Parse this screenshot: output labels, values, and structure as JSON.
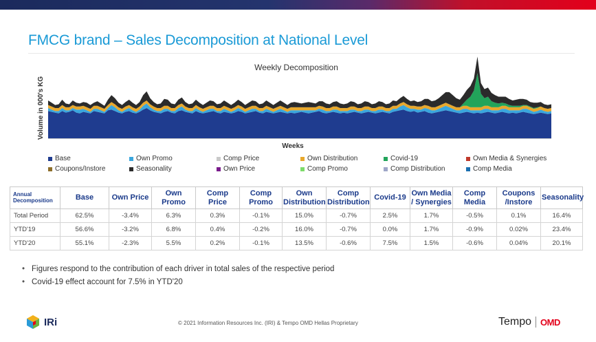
{
  "slide": {
    "title": "FMCG brand – Sales Decomposition at National Level"
  },
  "chart_data": {
    "type": "area",
    "title": "Weekly Decomposition",
    "xlabel": "Weeks",
    "ylabel": "Volume in 000's KG",
    "stacked": true,
    "weeks": 144,
    "series": [
      {
        "name": "Base",
        "color": "#1f3c8f"
      },
      {
        "name": "Own Promo",
        "color": "#3aa6dd"
      },
      {
        "name": "Comp Price",
        "color": "#c9c9c9"
      },
      {
        "name": "Own Distribution",
        "color": "#e8a82c"
      },
      {
        "name": "Covid-19",
        "color": "#22a45a"
      },
      {
        "name": "Own Media & Synergies",
        "color": "#c0392b"
      },
      {
        "name": "Coupons/Instore",
        "color": "#8d6e2a"
      },
      {
        "name": "Seasonality",
        "color": "#2b2b2b"
      },
      {
        "name": "Own Price",
        "color": "#7a1c8c"
      },
      {
        "name": "Comp Promo",
        "color": "#7ddc6a"
      },
      {
        "name": "Comp Distribution",
        "color": "#9fa6c8"
      },
      {
        "name": "Comp Media",
        "color": "#1a6fb0"
      }
    ],
    "profile": {
      "base": [
        36,
        35,
        34,
        33,
        36,
        34,
        35,
        37,
        34,
        33,
        35,
        34,
        33,
        36,
        35,
        34,
        33,
        37,
        38,
        36,
        34,
        33,
        35,
        36,
        34,
        33,
        35,
        38,
        40,
        37,
        35,
        34,
        33,
        35,
        36,
        34,
        33,
        36,
        37,
        35,
        34,
        33,
        36,
        34,
        33,
        34,
        35,
        36,
        34,
        33,
        35,
        34,
        33,
        34,
        36,
        35,
        33,
        34,
        35,
        36,
        34,
        33,
        35,
        34,
        33,
        34,
        35,
        34,
        33,
        34,
        33,
        34,
        35,
        34,
        33,
        34,
        35,
        36,
        34,
        33,
        34,
        35,
        34,
        33,
        34,
        33,
        34,
        35,
        34,
        33,
        34,
        35,
        34,
        33,
        34,
        35,
        34,
        33,
        35,
        36,
        37,
        38,
        36,
        35,
        36,
        34,
        35,
        36,
        34,
        33,
        34,
        35,
        36,
        37,
        36,
        35,
        34,
        33,
        34,
        35,
        34,
        33,
        34,
        33,
        34,
        35,
        34,
        33,
        34,
        35,
        34,
        33,
        34,
        33,
        34,
        35,
        34,
        33,
        32,
        33,
        34,
        33,
        32,
        33
      ],
      "own_promo": [
        4,
        3,
        2,
        3,
        4,
        3,
        2,
        3,
        4,
        5,
        4,
        3,
        2,
        3,
        4,
        3,
        2,
        3,
        6,
        5,
        3,
        2,
        3,
        4,
        3,
        2,
        3,
        5,
        6,
        4,
        3,
        2,
        3,
        4,
        3,
        2,
        3,
        4,
        5,
        3,
        2,
        3,
        4,
        3,
        2,
        3,
        4,
        3,
        2,
        3,
        4,
        3,
        2,
        3,
        4,
        3,
        2,
        3,
        4,
        3,
        2,
        3,
        4,
        3,
        2,
        3,
        4,
        3,
        2,
        3,
        4,
        3,
        2,
        3,
        4,
        3,
        2,
        3,
        4,
        3,
        2,
        3,
        4,
        3,
        2,
        3,
        4,
        3,
        2,
        3,
        4,
        3,
        2,
        3,
        4,
        3,
        2,
        3,
        4,
        3,
        5,
        6,
        5,
        4,
        3,
        4,
        3,
        4,
        5,
        4,
        3,
        4,
        5,
        6,
        5,
        4,
        3,
        4,
        5,
        4,
        3,
        4,
        3,
        4,
        5,
        4,
        3,
        4,
        3,
        4,
        5,
        4,
        3,
        4,
        3,
        4,
        5,
        4,
        3,
        3,
        4,
        3,
        3,
        3
      ],
      "own_distribution": [
        4,
        4,
        4,
        4,
        4,
        4,
        4,
        4,
        4,
        4,
        4,
        4,
        4,
        4,
        4,
        4,
        4,
        4,
        4,
        4,
        4,
        4,
        4,
        4,
        4,
        4,
        4,
        4,
        4,
        4,
        4,
        4,
        4,
        4,
        4,
        4,
        4,
        4,
        4,
        4,
        4,
        4,
        4,
        4,
        4,
        4,
        4,
        4,
        4,
        4,
        4,
        4,
        4,
        4,
        4,
        4,
        4,
        4,
        4,
        4,
        4,
        4,
        4,
        4,
        4,
        4,
        4,
        4,
        4,
        4,
        4,
        4,
        4,
        4,
        4,
        4,
        4,
        4,
        4,
        4,
        4,
        4,
        4,
        4,
        4,
        4,
        4,
        4,
        4,
        4,
        4,
        4,
        4,
        4,
        4,
        4,
        4,
        4,
        4,
        4,
        4,
        4,
        4,
        4,
        4,
        4,
        4,
        4,
        4,
        4,
        4,
        4,
        4,
        4,
        4,
        4,
        4,
        4,
        4,
        4,
        4,
        4,
        4,
        4,
        4,
        4,
        4,
        4,
        4,
        4,
        4,
        4,
        4,
        4,
        4,
        4,
        4,
        4,
        4,
        4,
        4,
        4,
        4,
        4
      ],
      "covid": [
        0,
        0,
        0,
        0,
        0,
        0,
        0,
        0,
        0,
        0,
        0,
        0,
        0,
        0,
        0,
        0,
        0,
        0,
        0,
        0,
        0,
        0,
        0,
        0,
        0,
        0,
        0,
        0,
        0,
        0,
        0,
        0,
        0,
        0,
        0,
        0,
        0,
        0,
        0,
        0,
        0,
        0,
        0,
        0,
        0,
        0,
        0,
        0,
        0,
        0,
        0,
        0,
        0,
        0,
        0,
        0,
        0,
        0,
        0,
        0,
        0,
        0,
        0,
        0,
        0,
        0,
        0,
        0,
        0,
        0,
        0,
        0,
        0,
        0,
        0,
        0,
        0,
        0,
        0,
        0,
        0,
        0,
        0,
        0,
        0,
        0,
        0,
        0,
        0,
        0,
        0,
        0,
        0,
        0,
        0,
        0,
        0,
        0,
        0,
        0,
        0,
        0,
        0,
        0,
        0,
        0,
        0,
        0,
        0,
        0,
        0,
        0,
        0,
        0,
        0,
        0,
        0,
        0,
        3,
        8,
        14,
        22,
        45,
        18,
        10,
        12,
        8,
        6,
        5,
        4,
        3,
        3,
        2,
        2,
        2,
        1,
        1,
        1,
        1,
        1,
        0,
        0,
        0,
        0
      ],
      "seasonality": [
        6,
        5,
        4,
        5,
        7,
        5,
        4,
        6,
        5,
        4,
        5,
        6,
        5,
        4,
        6,
        5,
        4,
        7,
        9,
        8,
        6,
        5,
        6,
        7,
        6,
        5,
        6,
        10,
        12,
        8,
        6,
        5,
        6,
        9,
        8,
        6,
        5,
        7,
        8,
        6,
        5,
        6,
        7,
        6,
        5,
        6,
        7,
        6,
        5,
        6,
        7,
        6,
        5,
        6,
        7,
        6,
        5,
        6,
        7,
        6,
        5,
        6,
        7,
        6,
        5,
        6,
        7,
        6,
        5,
        6,
        7,
        6,
        5,
        6,
        7,
        6,
        5,
        6,
        7,
        6,
        5,
        6,
        7,
        6,
        5,
        6,
        7,
        6,
        5,
        6,
        7,
        6,
        5,
        6,
        7,
        6,
        5,
        6,
        7,
        6,
        7,
        8,
        7,
        6,
        7,
        6,
        7,
        8,
        9,
        8,
        9,
        10,
        12,
        14,
        16,
        14,
        12,
        10,
        11,
        13,
        14,
        16,
        22,
        14,
        12,
        12,
        11,
        10,
        9,
        8,
        9,
        8,
        7,
        8,
        9,
        8,
        7,
        6,
        7,
        6,
        6,
        5,
        5,
        5
      ]
    }
  },
  "legend": {
    "items": [
      "Base",
      "Own Promo",
      "Comp Price",
      "Own Distribution",
      "Covid-19",
      "Own Media & Synergies",
      "Coupons/Instore",
      "Seasonality",
      "Own Price",
      "Comp Promo",
      "Comp Distribution",
      "Comp Media"
    ],
    "colors": [
      "#1f3c8f",
      "#3aa6dd",
      "#c9c9c9",
      "#e8a82c",
      "#22a45a",
      "#c0392b",
      "#8d6e2a",
      "#2b2b2b",
      "#7a1c8c",
      "#7ddc6a",
      "#9fa6c8",
      "#1a6fb0"
    ]
  },
  "table": {
    "headers": [
      "Annual Decomposition",
      "Base",
      "Own Price",
      "Own Promo",
      "Comp Price",
      "Comp Promo",
      "Own Distribution",
      "Comp Distribution",
      "Covid-19",
      "Own Media / Synergies",
      "Comp Media",
      "Coupons /Instore",
      "Seasonality"
    ],
    "rows": [
      [
        "Total Period",
        "62.5%",
        "-3.4%",
        "6.3%",
        "0.3%",
        "-0.1%",
        "15.0%",
        "-0.7%",
        "2.5%",
        "1.7%",
        "-0.5%",
        "0.1%",
        "16.4%"
      ],
      [
        "YTD'19",
        "56.6%",
        "-3.2%",
        "6.8%",
        "0.4%",
        "-0.2%",
        "16.0%",
        "-0.7%",
        "0.0%",
        "1.7%",
        "-0.9%",
        "0.02%",
        "23.4%"
      ],
      [
        "YTD'20",
        "55.1%",
        "-2.3%",
        "5.5%",
        "0.2%",
        "-0.1%",
        "13.5%",
        "-0.6%",
        "7.5%",
        "1.5%",
        "-0.6%",
        "0.04%",
        "20.1%"
      ]
    ]
  },
  "bullets": [
    "Figures respond to the contribution of each driver in total sales of the respective period",
    "Covid-19 effect account for 7.5% in YTD'20"
  ],
  "footer": {
    "copyright": "© 2021 Information Resources Inc. (IRI) & Tempo OMD Hellas Proprietary",
    "iri_logo": "IRi",
    "tempo_logo": "Tempo",
    "omd_logo": "OMD"
  }
}
